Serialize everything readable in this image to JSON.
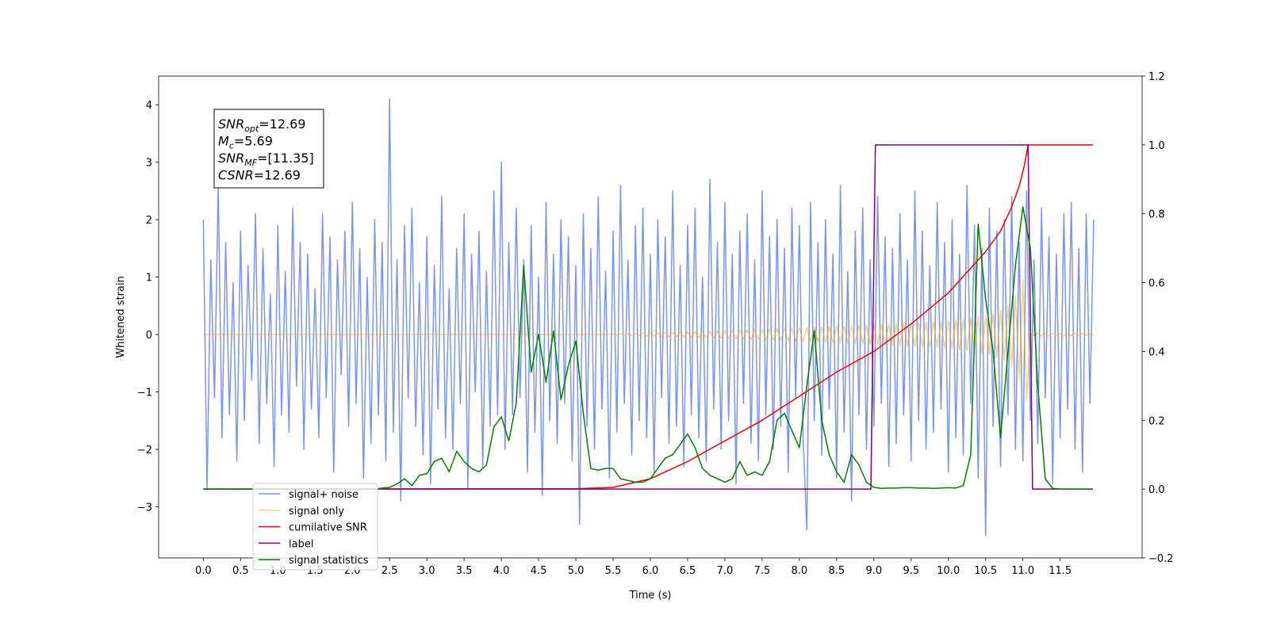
{
  "chart_data": {
    "type": "line",
    "xlabel": "Time (s)",
    "ylabel": "Whitened strain",
    "xlim": [
      -0.6,
      12.6
    ],
    "ylim": [
      -3.89,
      4.5
    ],
    "y2lim": [
      -0.2,
      1.2
    ],
    "xticks": [
      {
        "value": 0,
        "label": "0.0"
      },
      {
        "value": 0.5,
        "label": "0.5"
      },
      {
        "value": 1,
        "label": "1.0"
      },
      {
        "value": 1.5,
        "label": "1.5"
      },
      {
        "value": 2,
        "label": "2.0"
      },
      {
        "value": 2.5,
        "label": "2.5"
      },
      {
        "value": 3,
        "label": "3.0"
      },
      {
        "value": 3.5,
        "label": "3.5"
      },
      {
        "value": 4,
        "label": "4.0"
      },
      {
        "value": 4.5,
        "label": "4.5"
      },
      {
        "value": 5,
        "label": "5.0"
      },
      {
        "value": 5.5,
        "label": "5.5"
      },
      {
        "value": 6,
        "label": "6.0"
      },
      {
        "value": 6.5,
        "label": "6.5"
      },
      {
        "value": 7,
        "label": "7.0"
      },
      {
        "value": 7.5,
        "label": "7.5"
      },
      {
        "value": 8,
        "label": "8.0"
      },
      {
        "value": 8.5,
        "label": "8.5"
      },
      {
        "value": 9,
        "label": "9.0"
      },
      {
        "value": 9.5,
        "label": "9.5"
      },
      {
        "value": 10,
        "label": "10.0"
      },
      {
        "value": 10.5,
        "label": "10.5"
      },
      {
        "value": 11,
        "label": "11.0"
      },
      {
        "value": 11.5,
        "label": "11.5"
      }
    ],
    "yticks": [
      {
        "value": -3,
        "label": "−3"
      },
      {
        "value": -2,
        "label": "−2"
      },
      {
        "value": -1,
        "label": "−1"
      },
      0,
      1,
      2,
      3,
      4
    ],
    "y2ticks": [
      {
        "value": -0.2,
        "label": "−0.2"
      },
      {
        "value": 0,
        "label": "0.0"
      },
      {
        "value": 0.2,
        "label": "0.2"
      },
      {
        "value": 0.4,
        "label": "0.4"
      },
      {
        "value": 0.6,
        "label": "0.6"
      },
      {
        "value": 0.8,
        "label": "0.8"
      },
      {
        "value": 1,
        "label": "1.0"
      },
      {
        "value": 1.2,
        "label": "1.2"
      }
    ],
    "legend": "lower left",
    "annotation": [
      {
        "main": "SNR",
        "sub": "opt",
        "rest": "=12.69"
      },
      {
        "main": "M",
        "sub": "c",
        "rest": "=5.69"
      },
      {
        "main": "SNR",
        "sub": "MF",
        "rest": "=[11.35]"
      },
      {
        "main": "CSNR",
        "sub": "",
        "rest": "=12.69"
      }
    ],
    "x": [
      0,
      0.05,
      0.1,
      0.15,
      0.2,
      0.25,
      0.3,
      0.35,
      0.4,
      0.45,
      0.5,
      0.55,
      0.6,
      0.65,
      0.7,
      0.75,
      0.8,
      0.85,
      0.9,
      0.95,
      1,
      1.05,
      1.1,
      1.15,
      1.2,
      1.25,
      1.3,
      1.35,
      1.4,
      1.45,
      1.5,
      1.55,
      1.6,
      1.65,
      1.7,
      1.75,
      1.8,
      1.85,
      1.9,
      1.95,
      2,
      2.05,
      2.1,
      2.15,
      2.2,
      2.25,
      2.3,
      2.35,
      2.4,
      2.45,
      2.5,
      2.55,
      2.6,
      2.65,
      2.7,
      2.75,
      2.8,
      2.85,
      2.9,
      2.95,
      3,
      3.05,
      3.1,
      3.15,
      3.2,
      3.25,
      3.3,
      3.35,
      3.4,
      3.45,
      3.5,
      3.55,
      3.6,
      3.65,
      3.7,
      3.75,
      3.8,
      3.85,
      3.9,
      3.95,
      4,
      4.05,
      4.1,
      4.15,
      4.2,
      4.25,
      4.3,
      4.35,
      4.4,
      4.45,
      4.5,
      4.55,
      4.6,
      4.65,
      4.7,
      4.75,
      4.8,
      4.85,
      4.9,
      4.95,
      5,
      5.05,
      5.1,
      5.15,
      5.2,
      5.25,
      5.3,
      5.35,
      5.4,
      5.45,
      5.5,
      5.55,
      5.6,
      5.65,
      5.7,
      5.75,
      5.8,
      5.85,
      5.9,
      5.95,
      6,
      6.05,
      6.1,
      6.15,
      6.2,
      6.25,
      6.3,
      6.35,
      6.4,
      6.45,
      6.5,
      6.55,
      6.6,
      6.65,
      6.7,
      6.75,
      6.8,
      6.85,
      6.9,
      6.95,
      7,
      7.05,
      7.1,
      7.15,
      7.2,
      7.25,
      7.3,
      7.35,
      7.4,
      7.45,
      7.5,
      7.55,
      7.6,
      7.65,
      7.7,
      7.75,
      7.8,
      7.85,
      7.9,
      7.95,
      8,
      8.05,
      8.1,
      8.15,
      8.2,
      8.25,
      8.3,
      8.35,
      8.4,
      8.45,
      8.5,
      8.55,
      8.6,
      8.65,
      8.7,
      8.75,
      8.8,
      8.85,
      8.9,
      8.95,
      9,
      9.05,
      9.1,
      9.15,
      9.2,
      9.25,
      9.3,
      9.35,
      9.4,
      9.45,
      9.5,
      9.55,
      9.6,
      9.65,
      9.7,
      9.75,
      9.8,
      9.85,
      9.9,
      9.95,
      10,
      10.05,
      10.1,
      10.15,
      10.2,
      10.25,
      10.3,
      10.35,
      10.4,
      10.45,
      10.5,
      10.55,
      10.6,
      10.65,
      10.7,
      10.75,
      10.8,
      10.85,
      10.9,
      10.95,
      11,
      11.05,
      11.1,
      11.15,
      11.2,
      11.25,
      11.3,
      11.35,
      11.4,
      11.45,
      11.5,
      11.55,
      11.6,
      11.65,
      11.7,
      11.75,
      11.8,
      11.85,
      11.9,
      11.95
    ],
    "series": [
      {
        "name": "signal+ noise",
        "color": "#4169e1",
        "opacity": 0.7,
        "axis": "y",
        "values": [
          2.0,
          -2.7,
          1.3,
          -1.1,
          2.6,
          -1.8,
          1.6,
          -1.4,
          0.9,
          -2.2,
          1.8,
          -1.5,
          1.2,
          -0.8,
          2.1,
          -1.9,
          1.5,
          -1.2,
          0.7,
          -2.3,
          1.9,
          -1.4,
          1.1,
          -1.7,
          2.2,
          -0.9,
          1.6,
          -2.0,
          1.4,
          -1.3,
          0.8,
          -1.8,
          2.1,
          -1.1,
          1.7,
          -2.4,
          1.3,
          -0.7,
          1.8,
          -1.6,
          2.3,
          -1.2,
          1.5,
          -2.5,
          1.0,
          -1.9,
          2.0,
          -1.4,
          1.6,
          -2.2,
          4.1,
          -1.7,
          1.3,
          -2.9,
          1.9,
          -1.1,
          2.2,
          -1.6,
          0.9,
          -2.1,
          1.7,
          -2.6,
          1.2,
          -1.3,
          2.4,
          -1.8,
          0.8,
          -2.0,
          1.5,
          -1.2,
          2.1,
          -2.7,
          1.4,
          -1.0,
          1.8,
          -2.3,
          1.1,
          -1.6,
          2.5,
          -1.4,
          3.0,
          -2.0,
          1.6,
          -1.4,
          2.2,
          -1.1,
          1.3,
          -2.4,
          1.9,
          -1.7,
          1.0,
          -2.8,
          2.3,
          -1.5,
          1.4,
          -1.9,
          2.0,
          -1.2,
          1.7,
          -2.2,
          1.2,
          -3.3,
          2.1,
          -1.6,
          1.5,
          -2.0,
          2.4,
          -1.3,
          1.1,
          -2.5,
          1.8,
          -1.7,
          2.6,
          -1.2,
          1.3,
          -2.1,
          1.9,
          -1.5,
          2.2,
          -1.8,
          1.4,
          -2.4,
          2.0,
          -1.1,
          1.7,
          -1.9,
          2.5,
          -1.6,
          1.2,
          -2.3,
          1.9,
          -1.4,
          2.2,
          -1.8,
          1.0,
          -2.2,
          2.7,
          -1.3,
          1.6,
          -2.0,
          2.3,
          -1.5,
          1.4,
          -2.6,
          1.8,
          -1.2,
          2.1,
          -1.9,
          1.3,
          -2.2,
          2.5,
          -1.4,
          1.7,
          -2.0,
          2.0,
          -1.6,
          1.5,
          -2.4,
          2.2,
          -1.1,
          1.9,
          -1.8,
          -3.4,
          2.3,
          -1.5,
          1.6,
          -2.1,
          2.0,
          -1.3,
          1.4,
          -2.5,
          2.6,
          -1.7,
          1.1,
          -2.9,
          1.8,
          -1.4,
          2.2,
          -2.0,
          1.3,
          -1.6,
          2.4,
          -1.2,
          1.7,
          -2.3,
          1.5,
          -1.9,
          2.1,
          -1.4,
          1.3,
          -2.2,
          2.5,
          -1.5,
          1.8,
          -2.0,
          1.2,
          -1.7,
          2.3,
          -1.3,
          1.6,
          -2.4,
          2.0,
          -1.8,
          1.4,
          -2.1,
          2.6,
          -1.2,
          1.9,
          -2.5,
          1.5,
          -3.5,
          2.2,
          -1.6,
          1.8,
          -2.3,
          2.0,
          -1.4,
          2.4,
          -2.0,
          1.6,
          -2.2,
          2.5,
          -1.5,
          1.3,
          -1.9,
          2.2,
          -1.1,
          1.7,
          -2.6,
          1.4,
          -1.8,
          2.1,
          -1.3,
          2.3,
          -2.0,
          1.5,
          -2.4,
          2.1,
          -1.2,
          2.0
        ]
      },
      {
        "name": "signal only",
        "color": "#ffa500",
        "opacity": 0.5,
        "axis": "y",
        "values": [
          0,
          0,
          0,
          0,
          0,
          0,
          0,
          0,
          0,
          0,
          0,
          0,
          0,
          0,
          0,
          0,
          0,
          0,
          0,
          0,
          0,
          0,
          0,
          0,
          0,
          0,
          0,
          0,
          0,
          0,
          0,
          0,
          0,
          0,
          0,
          0,
          0,
          0,
          0,
          0,
          0,
          0,
          0,
          0,
          0,
          0,
          0,
          0,
          0,
          0,
          0,
          0,
          0,
          0,
          0,
          0,
          0,
          0,
          0,
          0,
          0,
          0,
          0,
          0,
          0,
          0,
          0,
          0,
          0,
          0,
          0,
          0,
          0,
          0,
          0,
          0,
          0,
          0,
          0,
          0,
          0,
          0,
          0,
          0,
          0,
          0,
          0,
          0,
          0,
          0,
          0,
          0,
          0,
          0,
          0,
          0,
          0,
          0,
          0,
          0,
          0,
          0,
          0,
          0,
          0,
          0,
          0,
          0,
          0,
          0,
          0.01,
          -0.012,
          0.014,
          -0.016,
          0.018,
          -0.02,
          0.022,
          -0.024,
          0.026,
          -0.028,
          0.03,
          -0.032,
          0.034,
          -0.036,
          0.038,
          -0.04,
          0.042,
          -0.044,
          0.046,
          -0.048,
          0.05,
          -0.052,
          0.054,
          -0.056,
          0.058,
          -0.06,
          0.062,
          -0.064,
          0.066,
          -0.068,
          0.07,
          -0.072,
          0.075,
          -0.077,
          0.08,
          -0.082,
          0.085,
          -0.087,
          0.09,
          -0.092,
          0.095,
          -0.097,
          0.1,
          -0.102,
          0.105,
          -0.107,
          0.11,
          -0.112,
          0.115,
          -0.117,
          0.12,
          -0.122,
          0.125,
          -0.127,
          0.13,
          -0.132,
          0.135,
          -0.137,
          0.14,
          -0.142,
          0.145,
          -0.147,
          0.15,
          -0.152,
          0.155,
          -0.157,
          0.16,
          -0.162,
          0.165,
          -0.167,
          0.17,
          -0.173,
          0.177,
          -0.18,
          0.184,
          -0.187,
          0.191,
          -0.194,
          0.198,
          -0.201,
          0.205,
          -0.208,
          0.212,
          -0.215,
          0.219,
          -0.222,
          0.226,
          -0.229,
          0.233,
          -0.236,
          0.24,
          -0.247,
          0.255,
          -0.263,
          0.272,
          -0.28,
          0.29,
          -0.3,
          0.31,
          -0.32,
          0.33,
          -0.35,
          0.37,
          -0.39,
          0.42,
          -0.45,
          0.5,
          -0.57,
          0.66,
          -0.78,
          0.95,
          -1.15,
          0.02,
          -0.02,
          0.02,
          -0.02,
          0.02,
          -0.02,
          0.02,
          -0.02,
          0.02,
          -0.02,
          0.02,
          -0.02,
          0.02,
          -0.02,
          0.02,
          -0.02,
          0.02,
          -0.02
        ]
      },
      {
        "name": "cumilative SNR",
        "color": "red",
        "axis": "y2",
        "x": [
          0,
          5,
          5.5,
          6,
          6.5,
          7,
          7.5,
          8,
          8.5,
          9,
          9.5,
          10,
          10.25,
          10.5,
          10.7,
          10.85,
          10.95,
          11.02,
          11.07,
          11.94
        ],
        "values": [
          0,
          0.001,
          0.005,
          0.03,
          0.08,
          0.14,
          0.2,
          0.27,
          0.34,
          0.4,
          0.48,
          0.57,
          0.63,
          0.69,
          0.75,
          0.82,
          0.88,
          0.94,
          1.0,
          1.0
        ]
      },
      {
        "name": "label",
        "color": "purple",
        "axis": "y2",
        "x": [
          0,
          8.96,
          9.02,
          11.07,
          11.13,
          11.94
        ],
        "values": [
          0,
          0,
          1,
          1,
          0,
          0
        ]
      },
      {
        "name": "signal statistics",
        "color": "green",
        "axis": "y2",
        "x": [
          0,
          0.1,
          0.2,
          0.3,
          0.4,
          0.5,
          0.6,
          0.7,
          0.8,
          0.9,
          1,
          1.1,
          1.2,
          1.3,
          1.4,
          1.5,
          1.6,
          1.7,
          1.8,
          1.9,
          2,
          2.1,
          2.2,
          2.3,
          2.4,
          2.5,
          2.6,
          2.7,
          2.8,
          2.9,
          3,
          3.1,
          3.2,
          3.3,
          3.4,
          3.5,
          3.6,
          3.7,
          3.8,
          3.9,
          4,
          4.1,
          4.2,
          4.3,
          4.4,
          4.5,
          4.6,
          4.7,
          4.8,
          4.9,
          5,
          5.1,
          5.2,
          5.3,
          5.4,
          5.5,
          5.6,
          5.7,
          5.8,
          5.9,
          6,
          6.1,
          6.2,
          6.3,
          6.4,
          6.5,
          6.6,
          6.7,
          6.8,
          6.9,
          7,
          7.1,
          7.2,
          7.3,
          7.4,
          7.5,
          7.6,
          7.7,
          7.8,
          7.9,
          8,
          8.1,
          8.2,
          8.3,
          8.4,
          8.5,
          8.6,
          8.7,
          8.8,
          8.9,
          9,
          9.1,
          9.2,
          9.3,
          9.4,
          9.5,
          9.6,
          9.7,
          9.8,
          9.9,
          10,
          10.1,
          10.2,
          10.3,
          10.4,
          10.5,
          10.6,
          10.7,
          10.8,
          10.9,
          11,
          11.1,
          11.2,
          11.3,
          11.4,
          11.5,
          11.6,
          11.7,
          11.8,
          11.9
        ],
        "values": [
          0,
          0,
          0,
          0,
          0,
          0,
          0,
          0,
          0,
          0,
          0,
          0,
          0,
          0,
          0,
          0,
          0,
          0,
          0,
          0,
          0,
          0,
          0,
          0,
          0.003,
          0.005,
          0.015,
          0.03,
          0.01,
          0.04,
          0.045,
          0.08,
          0.09,
          0.05,
          0.11,
          0.08,
          0.06,
          0.05,
          0.07,
          0.18,
          0.21,
          0.14,
          0.25,
          0.65,
          0.34,
          0.45,
          0.31,
          0.46,
          0.26,
          0.36,
          0.43,
          0.22,
          0.06,
          0.055,
          0.06,
          0.06,
          0.03,
          0.025,
          0.02,
          0.02,
          0.03,
          0.06,
          0.09,
          0.1,
          0.13,
          0.16,
          0.12,
          0.06,
          0.04,
          0.03,
          0.02,
          0.03,
          0.08,
          0.04,
          0.05,
          0.04,
          0.08,
          0.2,
          0.22,
          0.17,
          0.12,
          0.3,
          0.46,
          0.2,
          0.1,
          0.05,
          0.02,
          0.1,
          0.07,
          0.02,
          0.005,
          0.002,
          0.003,
          0.003,
          0.004,
          0.004,
          0.003,
          0.003,
          0.002,
          0.003,
          0.004,
          0.003,
          0.01,
          0.1,
          0.77,
          0.55,
          0.4,
          0.15,
          0.4,
          0.65,
          0.82,
          0.7,
          0.3,
          0.03,
          0.002,
          0,
          0,
          0,
          0,
          0
        ]
      }
    ]
  }
}
